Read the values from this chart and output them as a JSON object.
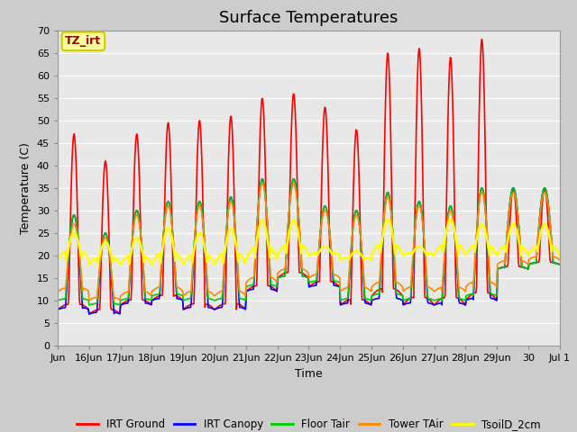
{
  "title": "Surface Temperatures",
  "xlabel": "Time",
  "ylabel": "Temperature (C)",
  "annotation_text": "TZ_irt",
  "annotation_color": "#990000",
  "annotation_bg": "#ffff99",
  "annotation_border": "#cccc00",
  "ylim": [
    0,
    70
  ],
  "yticks": [
    0,
    5,
    10,
    15,
    20,
    25,
    30,
    35,
    40,
    45,
    50,
    55,
    60,
    65,
    70
  ],
  "xtick_labels": [
    "Jun",
    "16Jun",
    "17Jun",
    "18Jun",
    "19Jun",
    "20Jun",
    "21Jun",
    "22Jun",
    "23Jun",
    "24Jun",
    "25Jun",
    "26Jun",
    "27Jun",
    "28Jun",
    "29Jun",
    "30",
    "Jul 1"
  ],
  "series": {
    "IRT Ground": {
      "color": "#ff0000",
      "lw": 1.2
    },
    "IRT Canopy": {
      "color": "#0000ff",
      "lw": 1.2
    },
    "Floor Tair": {
      "color": "#00cc00",
      "lw": 1.2
    },
    "Tower TAir": {
      "color": "#ff8800",
      "lw": 1.2
    },
    "TsoilD_2cm": {
      "color": "#ffff00",
      "lw": 1.8
    }
  },
  "bg_color": "#cccccc",
  "plot_bg": "#e8e8e8",
  "grid_color": "#ffffff",
  "title_fontsize": 13,
  "label_fontsize": 9,
  "tick_fontsize": 8
}
